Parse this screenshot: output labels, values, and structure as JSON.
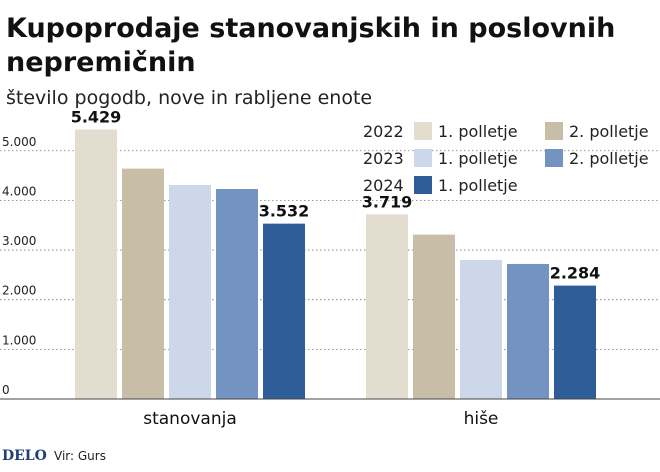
{
  "chart_data": {
    "type": "bar",
    "title_lines": [
      "Kupoprodaje stanovanjskih in poslovnih",
      "nepremičnin"
    ],
    "subtitle": "število pogodb, nove in rabljene enote",
    "categories": [
      "stanovanja",
      "hiše"
    ],
    "series": [
      {
        "name": "1. polletje",
        "year": "2022",
        "color": "#e3ddd0",
        "values": [
          5429,
          3719
        ]
      },
      {
        "name": "2. polletje",
        "year": "2022",
        "color": "#c8bea8",
        "values": [
          4640,
          3310
        ]
      },
      {
        "name": "1. polletje",
        "year": "2023",
        "color": "#ccd7ea",
        "values": [
          4310,
          2800
        ]
      },
      {
        "name": "2. polletje",
        "year": "2023",
        "color": "#7393c2",
        "values": [
          4230,
          2720
        ]
      },
      {
        "name": "1. polletje",
        "year": "2024",
        "color": "#2f5d98",
        "values": [
          3532,
          2284
        ]
      }
    ],
    "data_labels": [
      {
        "category": 0,
        "series": 0,
        "text": "5.429"
      },
      {
        "category": 0,
        "series": 4,
        "text": "3.532"
      },
      {
        "category": 1,
        "series": 0,
        "text": "3.719"
      },
      {
        "category": 1,
        "series": 4,
        "text": "2.284"
      }
    ],
    "ylim": [
      0,
      5700
    ],
    "yticks": [
      0,
      1000,
      2000,
      3000,
      4000,
      5000
    ],
    "ytick_labels": [
      "0",
      "1.000",
      "2.000",
      "3.000",
      "4.000",
      "5.000"
    ],
    "grid": true,
    "legend_position": "top-right",
    "legend_rows": [
      {
        "year": "2022",
        "items": [
          0,
          1
        ]
      },
      {
        "year": "2023",
        "items": [
          2,
          3
        ]
      },
      {
        "year": "2024",
        "items": [
          4
        ]
      }
    ]
  },
  "footer": {
    "brand": "DELO",
    "source": "Vir: Gurs"
  }
}
